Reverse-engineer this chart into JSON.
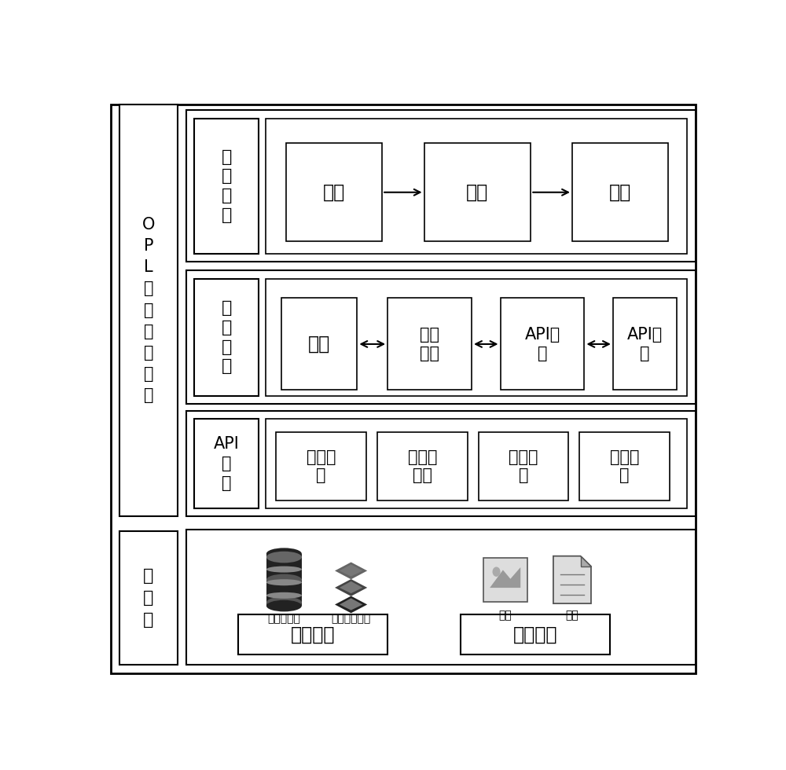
{
  "bg_color": "#ffffff",
  "fig_w": 10.0,
  "fig_h": 9.8,
  "dpi": 100,
  "font_size_large": 17,
  "font_size_med": 15,
  "font_size_small": 13,
  "font_size_tiny": 10,
  "lw_outer": 2.0,
  "lw_main": 1.5,
  "lw_inner": 1.2,
  "opl_label": "O\nP\nL\n动\n态\n模\n型\n构\n建",
  "data_label": "数\n据\n源",
  "row1_label": "关\n系\n映\n射",
  "row2_label": "对\n象\n映\n射",
  "row3_label": "API\n转\n换",
  "row1_boxes": [
    "对象",
    "场景",
    "对象"
  ],
  "row2_boxes": [
    "对象",
    "对象\n属性",
    "API属\n性",
    "API数\n据"
  ],
  "row3_boxes": [
    "属性类\n型",
    "属性默\n认值",
    "操作集\n合",
    "属性名\n称"
  ],
  "db_label": "关系数据库",
  "ndb_label": "非关系数据库",
  "img_label": "图片",
  "doc_label": "文件",
  "dynamic_label": "动态数据",
  "static_label": "静态数据"
}
